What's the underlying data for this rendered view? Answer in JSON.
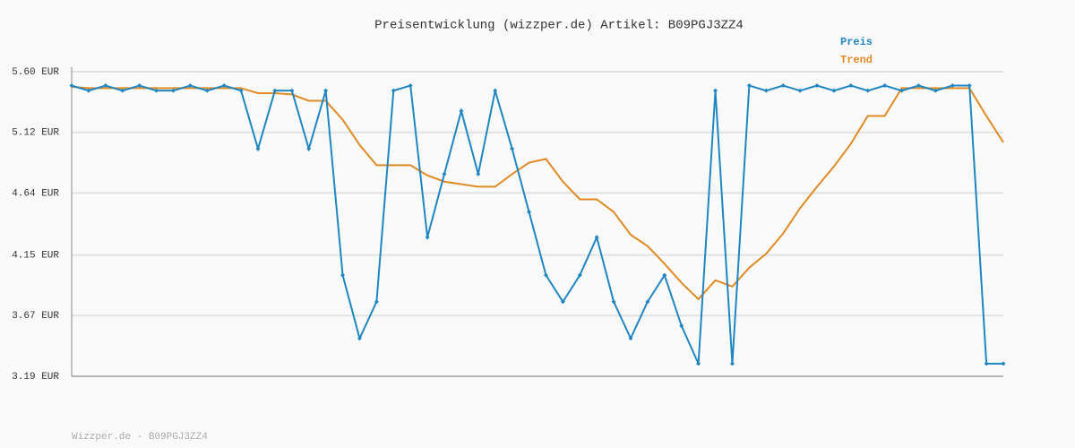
{
  "chart_data": {
    "type": "line",
    "title": "Preisentwicklung (wizzper.de) Artikel: B09PGJ3ZZ4",
    "footer": "Wizzper.de - B09PGJ3ZZ4",
    "categories": [
      null,
      null,
      null,
      null,
      null,
      null,
      null,
      null,
      null,
      null,
      null,
      null,
      null,
      null,
      null,
      null,
      null,
      null,
      null,
      null,
      null,
      null,
      null,
      null,
      null,
      null,
      null,
      null,
      null,
      null,
      null,
      null,
      null,
      null,
      null,
      null,
      null,
      null,
      null,
      null,
      null,
      null,
      null,
      null,
      null,
      null,
      null,
      null,
      null,
      null,
      null,
      null,
      null,
      null,
      null,
      null
    ],
    "series": [
      {
        "name": "Preis",
        "color": "#1f86c2",
        "markers": true,
        "values": [
          5.49,
          5.45,
          5.49,
          5.45,
          5.49,
          5.45,
          5.45,
          5.49,
          5.45,
          5.49,
          5.45,
          4.99,
          5.45,
          5.45,
          4.99,
          5.45,
          3.99,
          3.49,
          3.78,
          5.45,
          5.49,
          4.29,
          4.79,
          5.29,
          4.79,
          5.45,
          4.99,
          4.49,
          3.99,
          3.78,
          3.99,
          4.29,
          3.78,
          3.49,
          3.78,
          3.99,
          3.59,
          3.29,
          5.45,
          3.29,
          5.49,
          5.45,
          5.49,
          5.45,
          5.49,
          5.45,
          5.49,
          5.45,
          5.49,
          5.45,
          5.49,
          5.45,
          5.49,
          5.49,
          3.29,
          3.29
        ]
      },
      {
        "name": "Trend",
        "color": "#e08a24",
        "markers": false,
        "values": [
          5.48,
          5.47,
          5.47,
          5.47,
          5.47,
          5.47,
          5.47,
          5.47,
          5.47,
          5.47,
          5.47,
          5.43,
          5.43,
          5.42,
          5.37,
          5.37,
          5.22,
          5.02,
          4.86,
          4.86,
          4.86,
          4.78,
          4.73,
          4.71,
          4.69,
          4.69,
          4.79,
          4.88,
          4.91,
          4.73,
          4.59,
          4.59,
          4.49,
          4.31,
          4.22,
          4.08,
          3.93,
          3.8,
          3.95,
          3.9,
          4.05,
          4.16,
          4.32,
          4.52,
          4.69,
          4.85,
          5.03,
          5.25,
          5.25,
          5.47,
          5.47,
          5.47,
          5.47,
          5.47,
          5.25,
          5.04
        ]
      }
    ],
    "ylim": [
      3.19,
      5.6
    ],
    "yticks": [
      {
        "value": 5.6,
        "label": "5.60 EUR"
      },
      {
        "value": 5.12,
        "label": "5.12 EUR"
      },
      {
        "value": 4.64,
        "label": "4.64 EUR"
      },
      {
        "value": 4.15,
        "label": "4.15 EUR"
      },
      {
        "value": 3.67,
        "label": "3.67 EUR"
      },
      {
        "value": 3.19,
        "label": "3.19 EUR"
      }
    ],
    "grid": true,
    "legend": "top-right"
  }
}
